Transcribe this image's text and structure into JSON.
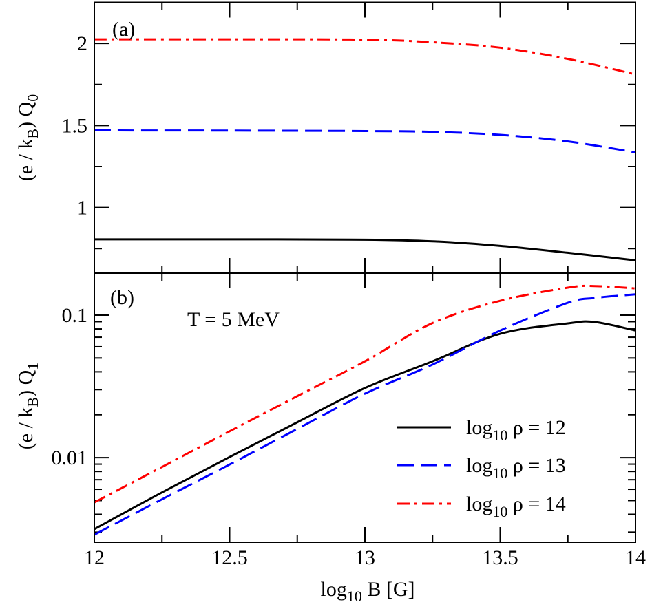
{
  "chart_data": [
    {
      "panel_label": "(a)",
      "type": "line",
      "ylabel": {
        "main": "(e / k",
        "sub_b": "B",
        "mid": ") Q",
        "sub_q": "0"
      },
      "xlim": [
        12,
        14
      ],
      "ylim": [
        0.6,
        2.25
      ],
      "yscale": "linear",
      "yticks": [
        1,
        1.5,
        2
      ],
      "yticklabels": [
        "1",
        "1.5",
        "2"
      ],
      "x": [
        12,
        12.5,
        13,
        13.25,
        13.5,
        13.75,
        14
      ],
      "series": [
        {
          "key": "rho12",
          "color": "#000000",
          "style": "solid",
          "values": [
            0.806,
            0.806,
            0.804,
            0.794,
            0.766,
            0.724,
            0.678
          ]
        },
        {
          "key": "rho13",
          "color": "#0000ff",
          "style": "dashed",
          "values": [
            1.47,
            1.469,
            1.466,
            1.461,
            1.443,
            1.403,
            1.336
          ]
        },
        {
          "key": "rho14",
          "color": "#ff0000",
          "style": "dash-dot",
          "values": [
            2.025,
            2.025,
            2.023,
            2.007,
            1.974,
            1.906,
            1.811
          ]
        }
      ]
    },
    {
      "panel_label": "(b)",
      "type": "line",
      "annotation": "T = 5 MeV",
      "ylabel": {
        "main": "(e / k",
        "sub_b": "B",
        "mid": ") Q",
        "sub_q": "1"
      },
      "xlabel": {
        "pre": "log",
        "sub": "10",
        "post": " B [G]"
      },
      "xlim": [
        12,
        14
      ],
      "xticks": [
        12,
        12.5,
        13,
        13.5,
        14
      ],
      "xticklabels": [
        "12",
        "12.5",
        "13",
        "13.5",
        "14"
      ],
      "ylim": [
        0.00255,
        0.197
      ],
      "yscale": "log",
      "yticks": [
        0.01,
        0.1
      ],
      "yticklabels": [
        "0.01",
        "0.1"
      ],
      "x": [
        12,
        12.25,
        12.5,
        12.75,
        13,
        13.25,
        13.5,
        13.75,
        13.85,
        14
      ],
      "series": [
        {
          "key": "rho12",
          "color": "#000000",
          "style": "solid",
          "values": [
            0.00315,
            0.0057,
            0.0101,
            0.0177,
            0.0308,
            0.0474,
            0.074,
            0.0875,
            0.0895,
            0.078
          ]
        },
        {
          "key": "rho13",
          "color": "#0000ff",
          "style": "dashed",
          "values": [
            0.00288,
            0.0051,
            0.00895,
            0.0159,
            0.0281,
            0.045,
            0.078,
            0.122,
            0.132,
            0.14
          ]
        },
        {
          "key": "rho14",
          "color": "#ff0000",
          "style": "dash-dot",
          "values": [
            0.00485,
            0.0086,
            0.0153,
            0.027,
            0.0474,
            0.088,
            0.126,
            0.156,
            0.16,
            0.154
          ]
        }
      ]
    }
  ],
  "legend": {
    "placement": "lower-right of panel (b)",
    "entries": [
      {
        "key": "rho12",
        "pre": "log",
        "sub": "10",
        "post": " ρ = 12",
        "color": "#000000",
        "style": "solid"
      },
      {
        "key": "rho13",
        "pre": "log",
        "sub": "10",
        "post": " ρ = 13",
        "color": "#0000ff",
        "style": "dashed"
      },
      {
        "key": "rho14",
        "pre": "log",
        "sub": "10",
        "post": " ρ = 14",
        "color": "#ff0000",
        "style": "dash-dot"
      }
    ]
  }
}
